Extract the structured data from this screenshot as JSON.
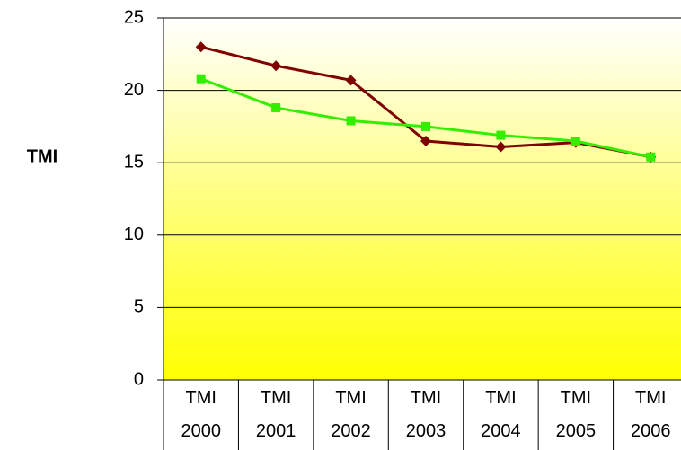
{
  "chart_data": {
    "type": "line",
    "y_label": "TMI",
    "categories": [
      "TMI 2000",
      "TMI 2001",
      "TMI 2002",
      "TMI 2003",
      "TMI 2004",
      "TMI 2005",
      "TMI 2006"
    ],
    "series": [
      {
        "color": "#800000",
        "marker": "diamond",
        "values": [
          23,
          21.7,
          20.7,
          16.5,
          16.1,
          16.4,
          15.4
        ]
      },
      {
        "color": "#33ee00",
        "marker": "square",
        "values": [
          20.8,
          18.8,
          17.9,
          17.5,
          16.9,
          16.5,
          15.4
        ]
      }
    ],
    "ylim": [
      0,
      25
    ],
    "yticks": [
      0,
      5,
      10,
      15,
      20,
      25
    ],
    "grid": true
  }
}
